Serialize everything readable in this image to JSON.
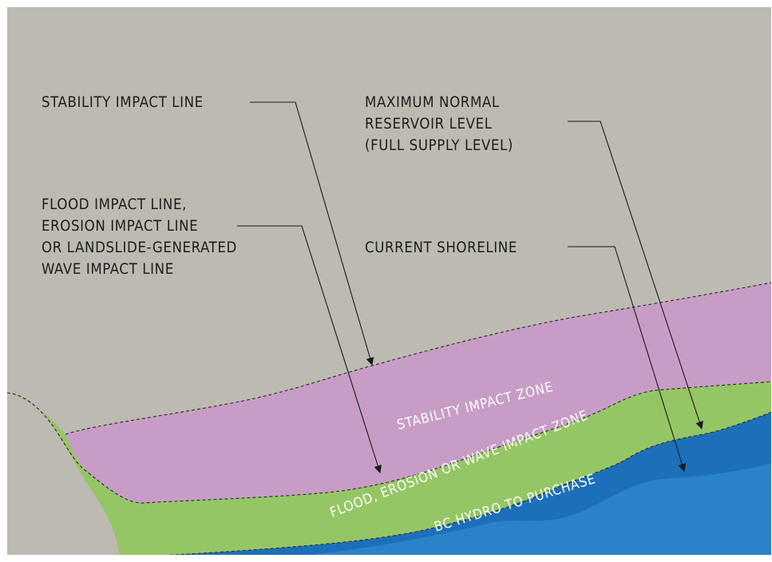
{
  "colors": {
    "background": "#bdbab2",
    "stability_zone": "#c79dc6",
    "flood_zone": "#95c665",
    "water": "#1d6fba",
    "water_light": "#2a82c9",
    "frame": "#ffffff",
    "text": "#1e1e1e"
  },
  "labels": {
    "stability_impact_line": [
      "STABILITY IMPACT LINE"
    ],
    "max_normal_reservoir_level": [
      "MAXIMUM NORMAL",
      "RESERVOIR LEVEL",
      "(FULL SUPPLY LEVEL)"
    ],
    "flood_impact_line": [
      "FLOOD IMPACT LINE,",
      "EROSION IMPACT LINE",
      "OR LANDSLIDE-GENERATED",
      "WAVE IMPACT LINE"
    ],
    "current_shoreline": [
      "CURRENT SHORELINE"
    ]
  },
  "zones": {
    "stability_impact_zone": "STABILITY IMPACT ZONE",
    "flood_erosion_wave_zone": "FLOOD, EROSION OR WAVE IMPACT ZONE",
    "bc_hydro_purchase": "BC HYDRO TO PURCHASE"
  }
}
